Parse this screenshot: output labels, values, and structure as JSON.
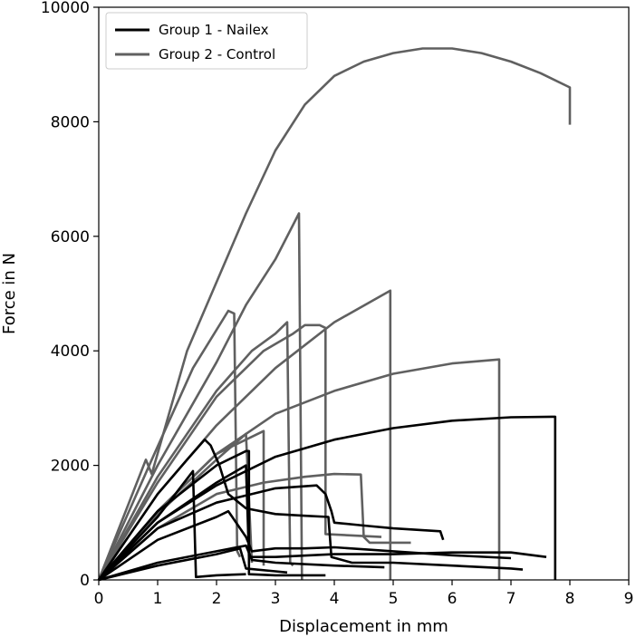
{
  "chart_data": {
    "type": "line",
    "title": "",
    "xlabel": "Displacement in mm",
    "ylabel": "Force in N",
    "xlim": [
      0,
      9
    ],
    "ylim": [
      0,
      10000
    ],
    "xticks": [
      0,
      1,
      2,
      3,
      4,
      5,
      6,
      7,
      8,
      9
    ],
    "yticks": [
      0,
      2000,
      4000,
      6000,
      8000,
      10000
    ],
    "grid": false,
    "legend": {
      "location": "top-left",
      "entries": [
        {
          "label": "Group 1 - Nailex",
          "color": "#000000"
        },
        {
          "label": "Group 2 - Control",
          "color": "#606060"
        }
      ]
    },
    "series": [
      {
        "name": "Group 2 - Control",
        "color": "#606060",
        "points": [
          [
            0,
            0
          ],
          [
            0.8,
            2100
          ],
          [
            0.9,
            1850
          ],
          [
            1.5,
            4000
          ],
          [
            2,
            5200
          ],
          [
            2.5,
            6400
          ],
          [
            3,
            7500
          ],
          [
            3.5,
            8300
          ],
          [
            4,
            8800
          ],
          [
            4.5,
            9050
          ],
          [
            5,
            9200
          ],
          [
            5.5,
            9280
          ],
          [
            6,
            9280
          ],
          [
            6.5,
            9200
          ],
          [
            7,
            9050
          ],
          [
            7.5,
            8850
          ],
          [
            8,
            8600
          ],
          [
            8,
            7950
          ]
        ]
      },
      {
        "name": "Group 2 - Control",
        "color": "#606060",
        "points": [
          [
            0,
            0
          ],
          [
            0.9,
            2100
          ],
          [
            1.6,
            3700
          ],
          [
            2.2,
            4700
          ],
          [
            2.3,
            4650
          ],
          [
            2.35,
            500
          ],
          [
            2.4,
            400
          ]
        ]
      },
      {
        "name": "Group 2 - Control",
        "color": "#606060",
        "points": [
          [
            0,
            0
          ],
          [
            1,
            2000
          ],
          [
            2,
            3800
          ],
          [
            2.5,
            4800
          ],
          [
            3,
            5600
          ],
          [
            3.4,
            6400
          ],
          [
            3.45,
            0
          ]
        ]
      },
      {
        "name": "Group 2 - Control",
        "color": "#606060",
        "points": [
          [
            0,
            0
          ],
          [
            1,
            1800
          ],
          [
            2,
            3300
          ],
          [
            2.6,
            4000
          ],
          [
            3,
            4300
          ],
          [
            3.2,
            4500
          ],
          [
            3.25,
            300
          ],
          [
            3.3,
            250
          ]
        ]
      },
      {
        "name": "Group 2 - Control",
        "color": "#606060",
        "points": [
          [
            0,
            0
          ],
          [
            1,
            1700
          ],
          [
            2,
            3200
          ],
          [
            2.8,
            4000
          ],
          [
            3.3,
            4300
          ],
          [
            3.5,
            4450
          ],
          [
            3.75,
            4450
          ],
          [
            3.85,
            4400
          ],
          [
            3.85,
            800
          ],
          [
            4.8,
            750
          ]
        ]
      },
      {
        "name": "Group 2 - Control",
        "color": "#606060",
        "points": [
          [
            0,
            0
          ],
          [
            1,
            1500
          ],
          [
            2,
            2700
          ],
          [
            3,
            3700
          ],
          [
            4,
            4500
          ],
          [
            4.95,
            5050
          ],
          [
            4.95,
            0
          ]
        ]
      },
      {
        "name": "Group 2 - Control",
        "color": "#606060",
        "points": [
          [
            0,
            0
          ],
          [
            1,
            1200
          ],
          [
            2,
            2200
          ],
          [
            3,
            2900
          ],
          [
            4,
            3300
          ],
          [
            5,
            3600
          ],
          [
            6,
            3780
          ],
          [
            6.8,
            3850
          ],
          [
            6.8,
            0
          ]
        ]
      },
      {
        "name": "Group 2 - Control",
        "color": "#606060",
        "points": [
          [
            0,
            0
          ],
          [
            1,
            1150
          ],
          [
            2,
            2100
          ],
          [
            2.5,
            2550
          ],
          [
            2.55,
            1400
          ],
          [
            2.6,
            300
          ]
        ]
      },
      {
        "name": "Group 2 - Control",
        "color": "#606060",
        "points": [
          [
            0,
            0
          ],
          [
            1,
            1200
          ],
          [
            2,
            2200
          ],
          [
            2.8,
            2600
          ],
          [
            2.8,
            250
          ]
        ]
      },
      {
        "name": "Group 2 - Control",
        "color": "#606060",
        "points": [
          [
            0,
            0
          ],
          [
            1,
            900
          ],
          [
            2,
            1500
          ],
          [
            2.8,
            1700
          ],
          [
            3.5,
            1800
          ],
          [
            4,
            1850
          ],
          [
            4.45,
            1840
          ],
          [
            4.5,
            750
          ],
          [
            4.6,
            650
          ],
          [
            5.3,
            650
          ]
        ]
      },
      {
        "name": "Group 1 - Nailex",
        "color": "#000000",
        "points": [
          [
            0,
            0
          ],
          [
            1,
            1000
          ],
          [
            2,
            1650
          ],
          [
            3,
            2150
          ],
          [
            4,
            2450
          ],
          [
            5,
            2650
          ],
          [
            6,
            2780
          ],
          [
            7,
            2840
          ],
          [
            7.7,
            2850
          ],
          [
            7.75,
            2850
          ],
          [
            7.75,
            0
          ]
        ]
      },
      {
        "name": "Group 1 - Nailex",
        "color": "#000000",
        "points": [
          [
            0,
            0
          ],
          [
            1,
            1500
          ],
          [
            1.5,
            2100
          ],
          [
            1.8,
            2450
          ],
          [
            1.9,
            2350
          ],
          [
            2.05,
            2000
          ],
          [
            2.2,
            1500
          ],
          [
            2.5,
            1250
          ],
          [
            3,
            1150
          ],
          [
            3.5,
            1120
          ],
          [
            3.9,
            1100
          ],
          [
            3.95,
            400
          ],
          [
            4.3,
            300
          ],
          [
            5,
            300
          ],
          [
            6,
            250
          ],
          [
            7,
            200
          ],
          [
            7.2,
            180
          ]
        ]
      },
      {
        "name": "Group 1 - Nailex",
        "color": "#000000",
        "points": [
          [
            0,
            0
          ],
          [
            1,
            1200
          ],
          [
            2,
            2000
          ],
          [
            2.5,
            2250
          ],
          [
            2.55,
            2250
          ],
          [
            2.55,
            100
          ],
          [
            3,
            80
          ],
          [
            3.85,
            80
          ]
        ]
      },
      {
        "name": "Group 1 - Nailex",
        "color": "#000000",
        "points": [
          [
            0,
            0
          ],
          [
            1,
            1100
          ],
          [
            1.6,
            1900
          ],
          [
            1.65,
            50
          ],
          [
            2,
            80
          ],
          [
            2.5,
            100
          ]
        ]
      },
      {
        "name": "Group 1 - Nailex",
        "color": "#000000",
        "points": [
          [
            0,
            0
          ],
          [
            1,
            1000
          ],
          [
            2,
            1700
          ],
          [
            2.5,
            2000
          ],
          [
            2.55,
            400
          ],
          [
            3,
            400
          ],
          [
            4,
            450
          ],
          [
            5,
            450
          ],
          [
            6,
            480
          ],
          [
            7,
            480
          ],
          [
            7.6,
            400
          ]
        ]
      },
      {
        "name": "Group 1 - Nailex",
        "color": "#000000",
        "points": [
          [
            0,
            0
          ],
          [
            1,
            900
          ],
          [
            2,
            1350
          ],
          [
            3,
            1600
          ],
          [
            3.7,
            1650
          ],
          [
            3.85,
            1500
          ],
          [
            3.95,
            1200
          ],
          [
            4,
            1000
          ],
          [
            4.5,
            950
          ],
          [
            5,
            900
          ],
          [
            5.8,
            850
          ],
          [
            5.85,
            700
          ]
        ]
      },
      {
        "name": "Group 1 - Nailex",
        "color": "#000000",
        "points": [
          [
            0,
            0
          ],
          [
            1,
            700
          ],
          [
            2,
            1100
          ],
          [
            2.2,
            1200
          ],
          [
            2.3,
            1050
          ],
          [
            2.5,
            750
          ],
          [
            2.6,
            500
          ],
          [
            3,
            550
          ],
          [
            3.5,
            550
          ],
          [
            4,
            570
          ],
          [
            5,
            500
          ],
          [
            6,
            430
          ],
          [
            7,
            380
          ]
        ]
      },
      {
        "name": "Group 1 - Nailex",
        "color": "#000000",
        "points": [
          [
            0,
            0
          ],
          [
            1,
            300
          ],
          [
            2,
            500
          ],
          [
            2.5,
            600
          ],
          [
            2.6,
            350
          ],
          [
            3,
            300
          ],
          [
            4,
            250
          ],
          [
            4.85,
            220
          ]
        ]
      },
      {
        "name": "Group 1 - Nailex",
        "color": "#000000",
        "points": [
          [
            0,
            0
          ],
          [
            1,
            250
          ],
          [
            2,
            450
          ],
          [
            2.4,
            550
          ],
          [
            2.5,
            200
          ],
          [
            3,
            150
          ],
          [
            3.2,
            130
          ]
        ]
      }
    ]
  }
}
